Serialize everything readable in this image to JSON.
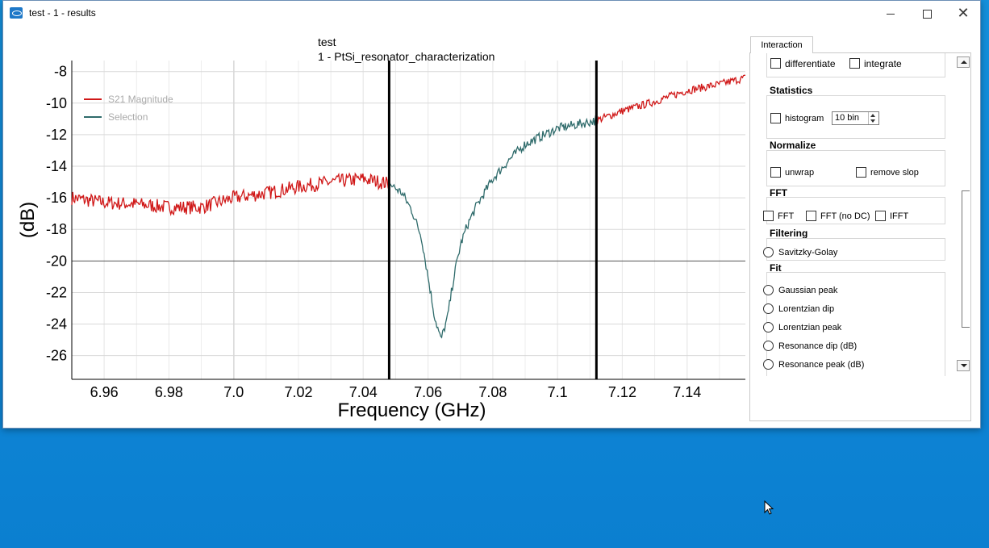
{
  "window": {
    "title": "test - 1 - results"
  },
  "plot": {
    "title_line1": "test",
    "title_line2": "1 - PtSi_resonator_characterization"
  },
  "chart_data": {
    "type": "line",
    "title": "test / 1 - PtSi_resonator_characterization",
    "xlabel": "Frequency (GHz)",
    "ylabel": "(dB)",
    "xlim": [
      6.95,
      7.158
    ],
    "ylim": [
      -27.5,
      -7.3
    ],
    "x_ticks": [
      "6.96",
      "6.98",
      "7.0",
      "7.02",
      "7.04",
      "7.06",
      "7.08",
      "7.1",
      "7.12",
      "7.14"
    ],
    "y_ticks": [
      "-8",
      "-10",
      "-12",
      "-14",
      "-16",
      "-18",
      "-20",
      "-22",
      "-24",
      "-26"
    ],
    "grid": true,
    "legend_position": "top-left",
    "legend": [
      "S21 Magnitude",
      "Selection"
    ],
    "selection_markers_x": [
      7.048,
      7.112
    ],
    "colors": {
      "s21": "#d01818",
      "selection": "#2f6b6b"
    },
    "series": [
      {
        "name": "S21 Magnitude",
        "x": [
          6.95,
          6.96,
          6.97,
          6.98,
          6.99,
          7.0,
          7.01,
          7.02,
          7.03,
          7.04,
          7.048,
          7.112,
          7.12,
          7.13,
          7.14,
          7.15,
          7.158
        ],
        "y": [
          -16.0,
          -16.3,
          -16.4,
          -16.6,
          -16.6,
          -16.0,
          -15.7,
          -15.3,
          -15.0,
          -14.8,
          -15.1,
          -11.1,
          -10.5,
          -9.9,
          -9.2,
          -8.8,
          -8.4
        ]
      },
      {
        "name": "Selection",
        "x": [
          7.048,
          7.052,
          7.055,
          7.058,
          7.06,
          7.062,
          7.064,
          7.066,
          7.068,
          7.07,
          7.072,
          7.075,
          7.08,
          7.085,
          7.09,
          7.1,
          7.112
        ],
        "y": [
          -15.1,
          -15.7,
          -16.8,
          -18.5,
          -21.0,
          -23.5,
          -25.0,
          -23.6,
          -21.0,
          -19.0,
          -17.8,
          -16.5,
          -14.8,
          -13.6,
          -12.6,
          -11.6,
          -11.1
        ]
      }
    ]
  },
  "panel": {
    "tab_label": "Interaction",
    "differentiate": "differentiate",
    "integrate": "integrate",
    "statistics_title": "Statistics",
    "histogram": "histogram",
    "bins_value": "10  bin",
    "normalize_title": "Normalize",
    "unwrap": "unwrap",
    "remove_slop": "remove slop",
    "fft_title": "FFT",
    "fft": "FFT",
    "fft_no_dc": "FFT (no DC)",
    "ifft": "IFFT",
    "filtering_title": "Filtering",
    "savitzky": "Savitzky-Golay",
    "fit_title": "Fit",
    "gaussian_peak": "Gaussian peak",
    "lorentzian_dip": "Lorentzian dip",
    "lorentzian_peak": "Lorentzian peak",
    "resonance_dip": "Resonance dip (dB)",
    "resonance_peak": "Resonance peak (dB)"
  }
}
